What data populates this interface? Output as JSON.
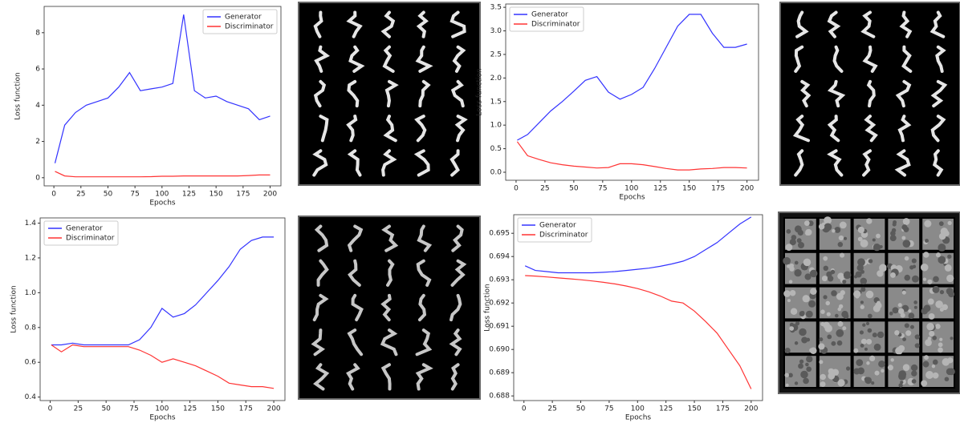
{
  "chart_data": [
    {
      "type": "line",
      "xlabel": "Epochs",
      "ylabel": "Loss function",
      "legend": "upper right",
      "x": [
        1,
        10,
        20,
        30,
        40,
        50,
        60,
        70,
        80,
        90,
        100,
        110,
        120,
        130,
        140,
        150,
        160,
        170,
        180,
        190,
        200
      ],
      "series": [
        {
          "name": "Generator",
          "color": "#3333ff",
          "values": [
            0.8,
            2.9,
            3.6,
            4.0,
            4.2,
            4.4,
            5.0,
            5.8,
            4.8,
            4.9,
            5.0,
            5.2,
            9.0,
            4.8,
            4.4,
            4.5,
            4.2,
            4.0,
            3.8,
            3.2,
            3.4
          ]
        },
        {
          "name": "Discriminator",
          "color": "#ff3333",
          "values": [
            0.35,
            0.1,
            0.05,
            0.05,
            0.05,
            0.05,
            0.05,
            0.05,
            0.05,
            0.06,
            0.08,
            0.08,
            0.1,
            0.1,
            0.1,
            0.1,
            0.1,
            0.1,
            0.12,
            0.15,
            0.15
          ]
        }
      ],
      "xlim": [
        -9,
        210
      ],
      "xticks": [
        0,
        25,
        50,
        75,
        100,
        125,
        150,
        175,
        200
      ],
      "ylim": [
        -0.45,
        9.45
      ],
      "yticks": [
        0,
        2,
        4,
        6,
        8
      ]
    },
    {
      "type": "line",
      "xlabel": "Epochs",
      "ylabel": "Loss function",
      "legend": "upper left",
      "x": [
        1,
        10,
        20,
        30,
        40,
        50,
        60,
        70,
        80,
        90,
        100,
        110,
        120,
        130,
        140,
        150,
        160,
        170,
        180,
        190,
        200
      ],
      "series": [
        {
          "name": "Generator",
          "color": "#3333ff",
          "values": [
            0.68,
            0.8,
            1.05,
            1.3,
            1.5,
            1.72,
            1.95,
            2.03,
            1.7,
            1.55,
            1.65,
            1.8,
            2.2,
            2.65,
            3.1,
            3.35,
            3.35,
            2.95,
            2.65,
            2.65,
            2.72
          ]
        },
        {
          "name": "Discriminator",
          "color": "#ff3333",
          "values": [
            0.65,
            0.35,
            0.27,
            0.2,
            0.16,
            0.13,
            0.11,
            0.09,
            0.1,
            0.18,
            0.18,
            0.16,
            0.12,
            0.08,
            0.05,
            0.05,
            0.07,
            0.08,
            0.1,
            0.1,
            0.09
          ]
        }
      ],
      "xlim": [
        -9,
        210
      ],
      "xticks": [
        0,
        25,
        50,
        75,
        100,
        125,
        150,
        175,
        200
      ],
      "ylim": [
        -0.17,
        3.57
      ],
      "yticks": [
        {
          "value": 0,
          "label": "0.0"
        },
        0.5,
        {
          "value": 1,
          "label": "1.0"
        },
        1.5,
        {
          "value": 2,
          "label": "2.0"
        },
        2.5,
        {
          "value": 3,
          "label": "3.0"
        },
        3.5
      ]
    },
    {
      "type": "line",
      "xlabel": "Epochs",
      "ylabel": "Loss function",
      "legend": "upper left",
      "x": [
        1,
        10,
        20,
        30,
        40,
        50,
        60,
        70,
        80,
        90,
        100,
        110,
        120,
        130,
        140,
        150,
        160,
        170,
        180,
        190,
        200
      ],
      "series": [
        {
          "name": "Generator",
          "color": "#3333ff",
          "values": [
            0.7,
            0.7,
            0.71,
            0.7,
            0.7,
            0.7,
            0.7,
            0.7,
            0.73,
            0.8,
            0.91,
            0.86,
            0.88,
            0.93,
            1.0,
            1.07,
            1.15,
            1.25,
            1.3,
            1.32,
            1.32
          ]
        },
        {
          "name": "Discriminator",
          "color": "#ff3333",
          "values": [
            0.7,
            0.66,
            0.7,
            0.69,
            0.69,
            0.69,
            0.69,
            0.69,
            0.67,
            0.64,
            0.6,
            0.62,
            0.6,
            0.58,
            0.55,
            0.52,
            0.48,
            0.47,
            0.46,
            0.46,
            0.45
          ]
        }
      ],
      "xlim": [
        -9,
        210
      ],
      "xticks": [
        0,
        25,
        50,
        75,
        100,
        125,
        150,
        175,
        200
      ],
      "ylim": [
        0.38,
        1.43
      ],
      "yticks": [
        0.4,
        0.6,
        0.8,
        {
          "value": 1,
          "label": "1.0"
        },
        1.2,
        1.4
      ]
    },
    {
      "type": "line",
      "xlabel": "Epochs",
      "ylabel": "Loss function",
      "legend": "upper left",
      "x": [
        1,
        10,
        20,
        30,
        40,
        50,
        60,
        70,
        80,
        90,
        100,
        110,
        120,
        130,
        140,
        150,
        160,
        170,
        180,
        190,
        200
      ],
      "series": [
        {
          "name": "Generator",
          "color": "#3333ff",
          "values": [
            0.6936,
            0.6934,
            0.69335,
            0.6933,
            0.6933,
            0.6933,
            0.6933,
            0.69332,
            0.69335,
            0.6934,
            0.69345,
            0.6935,
            0.69358,
            0.69368,
            0.6938,
            0.694,
            0.6943,
            0.6946,
            0.695,
            0.6954,
            0.6957
          ]
        },
        {
          "name": "Discriminator",
          "color": "#ff3333",
          "values": [
            0.69318,
            0.69316,
            0.69312,
            0.69308,
            0.69304,
            0.693,
            0.69295,
            0.69289,
            0.69282,
            0.69273,
            0.69262,
            0.69248,
            0.6923,
            0.69208,
            0.692,
            0.69165,
            0.6912,
            0.6907,
            0.69,
            0.6893,
            0.6883
          ]
        }
      ],
      "xlim": [
        -9,
        210
      ],
      "xticks": [
        0,
        25,
        50,
        75,
        100,
        125,
        150,
        175,
        200
      ],
      "ylim": [
        0.6878,
        0.6958
      ],
      "yticks": [
        0.688,
        0.689,
        {
          "value": 0.69,
          "label": "0.690"
        },
        0.691,
        0.692,
        0.693,
        0.694,
        0.695
      ]
    }
  ]
}
